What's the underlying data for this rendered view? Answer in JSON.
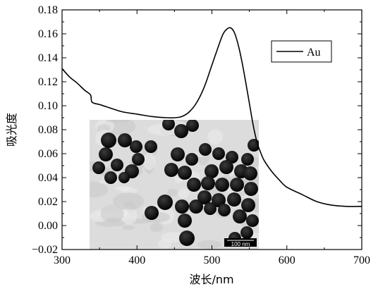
{
  "chart_data": {
    "type": "line",
    "title": "",
    "xlabel": "波长/nm",
    "ylabel": "吸光度",
    "xlim": [
      300,
      700
    ],
    "ylim": [
      -0.02,
      0.18
    ],
    "x_ticks": [
      "300",
      "400",
      "500",
      "600",
      "700"
    ],
    "y_ticks": [
      "−0.02",
      "0.00",
      "0.02",
      "0.04",
      "0.06",
      "0.08",
      "0.10",
      "0.12",
      "0.14",
      "0.16",
      "0.18"
    ],
    "grid": false,
    "legend_position": "top-right",
    "series": [
      {
        "name": "Au",
        "color": "#000000",
        "x": [
          300,
          310,
          320,
          330,
          338,
          340,
          350,
          360,
          380,
          400,
          420,
          440,
          450,
          460,
          470,
          480,
          490,
          500,
          510,
          515,
          520,
          525,
          530,
          535,
          540,
          545,
          550,
          555,
          560,
          565,
          570,
          580,
          590,
          600,
          620,
          640,
          660,
          680,
          700
        ],
        "y": [
          0.131,
          0.124,
          0.119,
          0.113,
          0.109,
          0.103,
          0.101,
          0.099,
          0.095,
          0.093,
          0.091,
          0.09,
          0.09,
          0.091,
          0.095,
          0.103,
          0.116,
          0.134,
          0.152,
          0.16,
          0.164,
          0.165,
          0.161,
          0.151,
          0.137,
          0.12,
          0.102,
          0.084,
          0.07,
          0.061,
          0.054,
          0.045,
          0.038,
          0.032,
          0.026,
          0.02,
          0.017,
          0.016,
          0.016
        ]
      }
    ],
    "inset": {
      "type": "image",
      "description_icon": "tem-micrograph-icon",
      "scale_bar_label": "100 nm"
    }
  }
}
